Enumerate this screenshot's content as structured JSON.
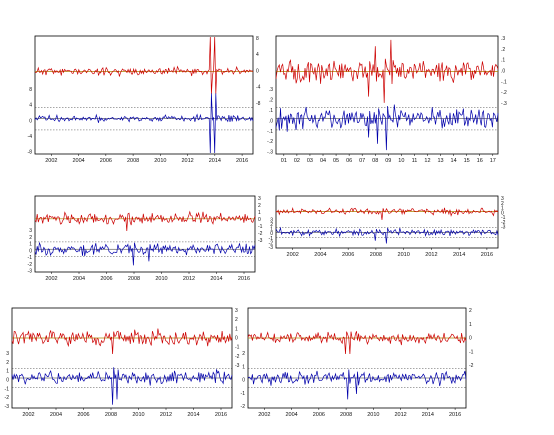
{
  "figure": {
    "background": "#ffffff"
  },
  "colors": {
    "upper_series": "#cc0000",
    "lower_series": "#0000aa",
    "ref_line": "#aa8800",
    "axis": "#000000"
  },
  "chart_data": [
    {
      "type": "line",
      "x_ticks": [
        "2002",
        "2004",
        "2006",
        "2008",
        "2010",
        "2012",
        "2014",
        "2016"
      ],
      "left_ticks": [
        "8",
        "4",
        "0",
        "-4",
        "-8"
      ],
      "right_ticks": [
        "8",
        "4",
        "0",
        "-4",
        "-8"
      ],
      "upper_band": {
        "seed": 11,
        "amp": 0.6,
        "spikes": [
          [
            0.805,
            9
          ],
          [
            0.825,
            9
          ]
        ]
      },
      "lower_band": {
        "seed": 12,
        "amp": 0.5,
        "spikes": [
          [
            0.805,
            -10
          ],
          [
            0.825,
            -10
          ]
        ]
      },
      "series": [
        {
          "values": "upper (red/green) residual series"
        },
        {
          "values": "lower (blue) residual series"
        }
      ]
    },
    {
      "type": "line",
      "x_ticks": [
        "01",
        "02",
        "03",
        "04",
        "05",
        "06",
        "07",
        "08",
        "09",
        "10",
        "11",
        "12",
        "13",
        "14",
        "15",
        "16",
        "17"
      ],
      "left_ticks": [
        ".3",
        ".2",
        ".1",
        ".0",
        "-.1",
        "-.2",
        "-.3"
      ],
      "right_ticks": [
        ".3",
        ".2",
        ".1",
        ".0",
        "-.1",
        "-.2",
        "-.3"
      ],
      "upper_band": {
        "seed": 21,
        "amp": 1.6,
        "spikes": [
          [
            0.42,
            -4
          ],
          [
            0.45,
            4
          ],
          [
            0.49,
            -5
          ],
          [
            0.52,
            5
          ]
        ]
      },
      "lower_band": {
        "seed": 22,
        "amp": 1.6,
        "spikes": [
          [
            0.42,
            -3
          ],
          [
            0.46,
            -4
          ],
          [
            0.5,
            -5
          ]
        ]
      },
      "series": [
        {
          "values": "upper"
        },
        {
          "values": "lower"
        }
      ]
    },
    {
      "type": "line",
      "x_ticks": [
        "2002",
        "2004",
        "2006",
        "2008",
        "2010",
        "2012",
        "2014",
        "2016"
      ],
      "left_ticks": [
        "3",
        "2",
        "1",
        "0",
        "-1",
        "-2",
        "-3"
      ],
      "right_ticks": [
        "3",
        "2",
        "1",
        "0",
        "-1",
        "-2",
        "-3"
      ],
      "upper_band": {
        "seed": 31,
        "amp": 1.3,
        "spikes": [
          [
            0.42,
            -3
          ]
        ]
      },
      "lower_band": {
        "seed": 32,
        "amp": 1.3,
        "spikes": [
          [
            0.45,
            -4
          ],
          [
            0.52,
            -3
          ]
        ]
      },
      "series": [
        {
          "values": "upper"
        },
        {
          "values": "lower"
        }
      ]
    },
    {
      "type": "line",
      "x_ticks": [
        "2002",
        "2004",
        "2006",
        "2008",
        "2010",
        "2012",
        "2014",
        "2016"
      ],
      "left_ticks": [
        "3",
        "2",
        "1",
        "0",
        "-1",
        "-2",
        "-3"
      ],
      "right_ticks": [
        "3",
        "2",
        "1",
        "0",
        "-1",
        "-2",
        "-3"
      ],
      "upper_band": {
        "seed": 41,
        "amp": 1.1,
        "spikes": [
          [
            0.48,
            -3
          ]
        ]
      },
      "lower_band": {
        "seed": 42,
        "amp": 1.2,
        "spikes": [
          [
            0.45,
            -3
          ],
          [
            0.5,
            -4
          ]
        ]
      },
      "series": [
        {
          "values": "upper"
        },
        {
          "values": "lower"
        }
      ]
    },
    {
      "type": "line",
      "x_ticks": [
        "2002",
        "2004",
        "2006",
        "2008",
        "2010",
        "2012",
        "2014",
        "2016"
      ],
      "left_ticks": [
        "3",
        "2",
        "1",
        "0",
        "-1",
        "-2",
        "-3"
      ],
      "right_ticks": [
        "3",
        "2",
        "1",
        "0",
        "-1",
        "-2",
        "-3"
      ],
      "upper_band": {
        "seed": 51,
        "amp": 1.4,
        "spikes": [
          [
            0.46,
            -3
          ]
        ]
      },
      "lower_band": {
        "seed": 52,
        "amp": 1.3,
        "spikes": [
          [
            0.46,
            -5
          ],
          [
            0.48,
            -4
          ]
        ]
      },
      "series": [
        {
          "values": "upper"
        },
        {
          "values": "lower"
        }
      ]
    },
    {
      "type": "line",
      "x_ticks": [
        "2002",
        "2004",
        "2006",
        "2008",
        "2010",
        "2012",
        "2014",
        "2016"
      ],
      "left_ticks": [
        "2",
        "1",
        "0",
        "-1",
        "-2"
      ],
      "right_ticks": [
        "2",
        "1",
        "0",
        "-1",
        "-2"
      ],
      "upper_band": {
        "seed": 61,
        "amp": 1.0,
        "spikes": [
          [
            0.45,
            -3
          ],
          [
            0.47,
            -3
          ]
        ]
      },
      "lower_band": {
        "seed": 62,
        "amp": 1.1,
        "spikes": [
          [
            0.46,
            -4
          ],
          [
            0.5,
            -3
          ]
        ]
      },
      "series": [
        {
          "values": "upper"
        },
        {
          "values": "lower"
        }
      ]
    }
  ]
}
